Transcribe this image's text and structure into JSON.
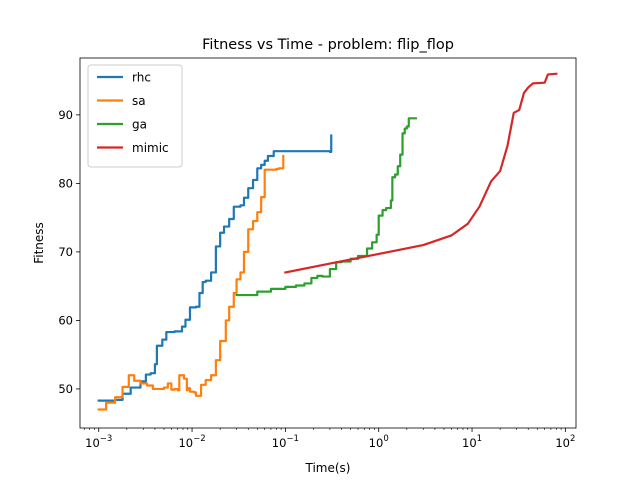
{
  "chart_data": {
    "type": "line",
    "title": "Fitness vs Time - problem: flip_flop",
    "xlabel": "Time(s)",
    "ylabel": "Fitness",
    "xscale": "log",
    "xlim": [
      0.00063,
      130
    ],
    "ylim": [
      44.3,
      98.3
    ],
    "x_ticks": [
      {
        "value": 0.001,
        "base": "10",
        "exp": "−3"
      },
      {
        "value": 0.01,
        "base": "10",
        "exp": "−2"
      },
      {
        "value": 0.1,
        "base": "10",
        "exp": "−1"
      },
      {
        "value": 1,
        "base": "10",
        "exp": "0"
      },
      {
        "value": 10,
        "base": "10",
        "exp": "1"
      },
      {
        "value": 100,
        "base": "10",
        "exp": "2"
      }
    ],
    "y_ticks": [
      50,
      60,
      70,
      80,
      90
    ],
    "grid": false,
    "legend_position": "top-left",
    "series": [
      {
        "name": "rhc",
        "color": "#1f77b4",
        "points": [
          [
            0.001,
            48.3
          ],
          [
            0.0012,
            48.3
          ],
          [
            0.0015,
            48.4
          ],
          [
            0.0018,
            49.3
          ],
          [
            0.0022,
            50.2
          ],
          [
            0.0028,
            51.1
          ],
          [
            0.0032,
            52.1
          ],
          [
            0.0036,
            52.3
          ],
          [
            0.004,
            53.6
          ],
          [
            0.0042,
            56.3
          ],
          [
            0.0048,
            57.2
          ],
          [
            0.0053,
            58.3
          ],
          [
            0.0065,
            58.4
          ],
          [
            0.0072,
            58.4
          ],
          [
            0.0078,
            59.1
          ],
          [
            0.0085,
            60.1
          ],
          [
            0.0095,
            61.9
          ],
          [
            0.011,
            62.0
          ],
          [
            0.012,
            64.0
          ],
          [
            0.013,
            65.6
          ],
          [
            0.014,
            65.8
          ],
          [
            0.016,
            67.0
          ],
          [
            0.018,
            70.8
          ],
          [
            0.02,
            72.8
          ],
          [
            0.022,
            73.7
          ],
          [
            0.025,
            74.8
          ],
          [
            0.028,
            76.6
          ],
          [
            0.033,
            76.8
          ],
          [
            0.036,
            77.9
          ],
          [
            0.04,
            79.3
          ],
          [
            0.045,
            80.5
          ],
          [
            0.05,
            82.2
          ],
          [
            0.055,
            82.7
          ],
          [
            0.06,
            83.3
          ],
          [
            0.065,
            84.0
          ],
          [
            0.075,
            84.7
          ],
          [
            0.1,
            84.7
          ],
          [
            0.15,
            84.7
          ],
          [
            0.3,
            84.6
          ],
          [
            0.31,
            87.0
          ]
        ]
      },
      {
        "name": "sa",
        "color": "#ff7f0e",
        "points": [
          [
            0.001,
            47.0
          ],
          [
            0.0012,
            48.0
          ],
          [
            0.0015,
            48.8
          ],
          [
            0.0018,
            50.3
          ],
          [
            0.0021,
            52.0
          ],
          [
            0.0024,
            51.2
          ],
          [
            0.0028,
            50.8
          ],
          [
            0.0033,
            50.5
          ],
          [
            0.0038,
            50.0
          ],
          [
            0.0045,
            50.0
          ],
          [
            0.005,
            50.2
          ],
          [
            0.0055,
            50.8
          ],
          [
            0.006,
            49.9
          ],
          [
            0.0065,
            50.0
          ],
          [
            0.007,
            49.8
          ],
          [
            0.0073,
            52.0
          ],
          [
            0.0082,
            51.5
          ],
          [
            0.0088,
            49.8
          ],
          [
            0.009,
            50.1
          ],
          [
            0.0095,
            49.6
          ],
          [
            0.0105,
            49.5
          ],
          [
            0.011,
            49.0
          ],
          [
            0.0125,
            50.6
          ],
          [
            0.014,
            51.3
          ],
          [
            0.016,
            52.0
          ],
          [
            0.018,
            54.2
          ],
          [
            0.02,
            57.0
          ],
          [
            0.023,
            60.0
          ],
          [
            0.025,
            62.0
          ],
          [
            0.028,
            64.0
          ],
          [
            0.03,
            66.0
          ],
          [
            0.033,
            67.0
          ],
          [
            0.036,
            70.0
          ],
          [
            0.04,
            73.3
          ],
          [
            0.045,
            74.5
          ],
          [
            0.05,
            75.8
          ],
          [
            0.055,
            78.0
          ],
          [
            0.06,
            82.0
          ],
          [
            0.08,
            82.1
          ],
          [
            0.085,
            82.2
          ],
          [
            0.095,
            84.0
          ]
        ]
      },
      {
        "name": "ga",
        "color": "#2ca02c",
        "points": [
          [
            0.03,
            63.7
          ],
          [
            0.05,
            64.2
          ],
          [
            0.07,
            64.6
          ],
          [
            0.1,
            64.9
          ],
          [
            0.13,
            65.1
          ],
          [
            0.16,
            65.4
          ],
          [
            0.19,
            66.2
          ],
          [
            0.22,
            66.5
          ],
          [
            0.25,
            66.4
          ],
          [
            0.3,
            67.5
          ],
          [
            0.35,
            68.5
          ],
          [
            0.4,
            68.6
          ],
          [
            0.5,
            69.0
          ],
          [
            0.6,
            69.4
          ],
          [
            0.75,
            70.5
          ],
          [
            0.85,
            71.4
          ],
          [
            0.95,
            72.5
          ],
          [
            1.0,
            75.3
          ],
          [
            1.1,
            76.1
          ],
          [
            1.2,
            76.4
          ],
          [
            1.35,
            77.5
          ],
          [
            1.4,
            80.9
          ],
          [
            1.5,
            81.3
          ],
          [
            1.6,
            82.5
          ],
          [
            1.7,
            84.2
          ],
          [
            1.8,
            87.3
          ],
          [
            1.9,
            88.0
          ],
          [
            2.0,
            88.3
          ],
          [
            2.1,
            89.5
          ],
          [
            2.5,
            89.5
          ]
        ]
      },
      {
        "name": "mimic",
        "color": "#d62728",
        "points": [
          [
            0.1,
            67.0
          ],
          [
            0.3,
            68.3
          ],
          [
            1.0,
            69.7
          ],
          [
            3.0,
            71.0
          ],
          [
            6.0,
            72.4
          ],
          [
            9.0,
            74.1
          ],
          [
            12.0,
            76.6
          ],
          [
            16.0,
            80.3
          ],
          [
            20.0,
            81.8
          ],
          [
            24.0,
            85.5
          ],
          [
            28.0,
            90.3
          ],
          [
            32.0,
            90.7
          ],
          [
            36.0,
            93.2
          ],
          [
            40.0,
            94.0
          ],
          [
            45.0,
            94.6
          ],
          [
            60.0,
            94.7
          ],
          [
            65.0,
            95.9
          ],
          [
            80.0,
            96.0
          ]
        ]
      }
    ]
  }
}
